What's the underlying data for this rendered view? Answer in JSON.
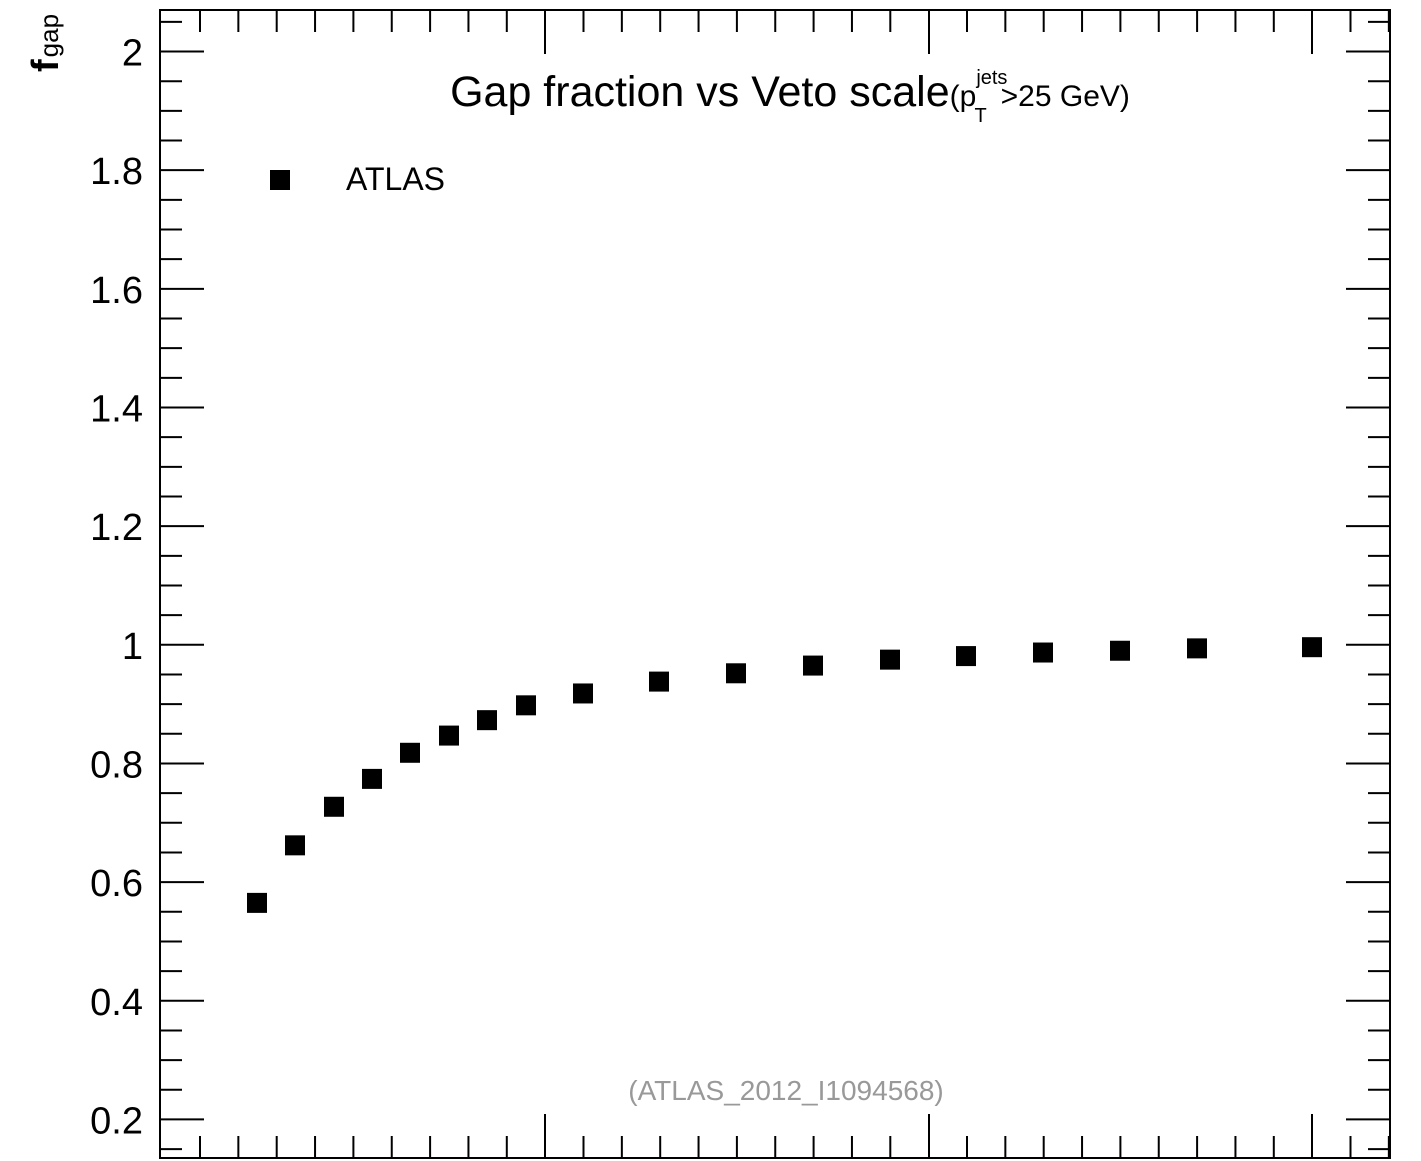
{
  "chart_data": {
    "type": "scatter",
    "title": {
      "main": "Gap fraction vs Veto scale",
      "paren_open": "(p",
      "sup": "jets",
      "sub": "T",
      "rest": ">25 GeV)"
    },
    "ylabel": {
      "base": "f",
      "sub": "gap"
    },
    "xlabel": "",
    "ylim": [
      0.135,
      2.07
    ],
    "y_ticks": [
      0.2,
      0.4,
      0.6,
      0.8,
      1,
      1.2,
      1.4,
      1.6,
      1.8,
      2
    ],
    "y_tick_labels": [
      "0.2",
      "0.4",
      "0.6",
      "0.8",
      "1",
      "1.2",
      "1.4",
      "1.6",
      "1.8",
      "2"
    ],
    "y_minor_step": 0.05,
    "legend": {
      "position": "top-left",
      "entries": [
        "ATLAS"
      ]
    },
    "watermark": "(ATLAS_2012_I1094568)",
    "series": [
      {
        "name": "ATLAS",
        "marker": "square",
        "color": "#000000",
        "x": [
          1,
          2,
          3,
          4,
          5,
          6,
          7,
          8,
          9,
          10,
          11,
          12,
          13,
          14,
          15,
          16,
          17,
          18,
          19
        ],
        "values": [
          0.565,
          0.662,
          0.727,
          0.774,
          0.818,
          0.847,
          0.873,
          0.898,
          0.918,
          0.938,
          0.952,
          0.965,
          0.975,
          0.981,
          0.987,
          0.99,
          0.994,
          0.996,
          0.998
        ]
      }
    ],
    "grid": false
  }
}
